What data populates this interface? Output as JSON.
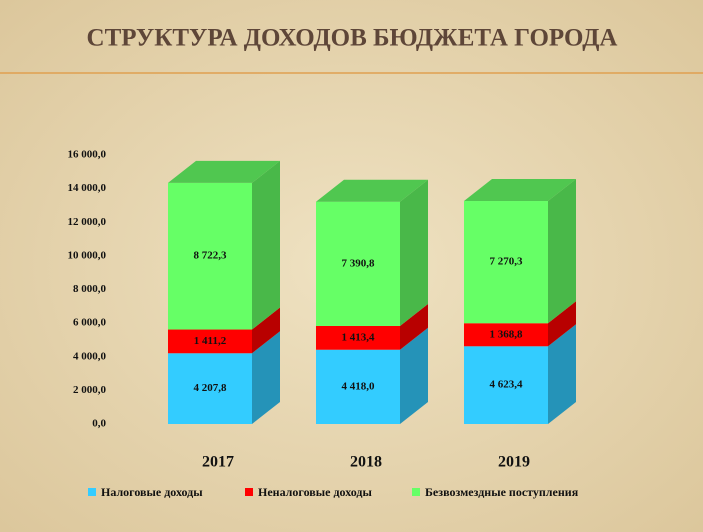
{
  "chart_data": {
    "type": "bar3d_stacked",
    "title": "СТРУКТУРА ДОХОДОВ БЮДЖЕТА ГОРОДА",
    "categories": [
      "2017",
      "2018",
      "2019"
    ],
    "series": [
      {
        "name": "Налоговые доходы",
        "color": "#33ccff",
        "values": [
          4207.8,
          4418.0,
          4623.4
        ],
        "value_labels": [
          "4 207,8",
          "4 418,0",
          "4 623,4"
        ]
      },
      {
        "name": "Неналоговые доходы",
        "color": "#ff0000",
        "values": [
          1411.2,
          1413.4,
          1368.8
        ],
        "value_labels": [
          "1 411,2",
          "1 413,4",
          "1 368,8"
        ]
      },
      {
        "name": "Безвозмездные поступления",
        "color": "#66ff66",
        "values": [
          8722.3,
          7390.8,
          7270.3
        ],
        "value_labels": [
          "8 722,3",
          "7 390,8",
          "7 270,3"
        ]
      }
    ],
    "ylim": [
      0,
      16000
    ],
    "yticks": [
      {
        "value": 0,
        "label": "0,0"
      },
      {
        "value": 2000,
        "label": "2 000,0"
      },
      {
        "value": 4000,
        "label": "4 000,0"
      },
      {
        "value": 6000,
        "label": "6 000,0"
      },
      {
        "value": 8000,
        "label": "8 000,0"
      },
      {
        "value": 10000,
        "label": "10 000,0"
      },
      {
        "value": 12000,
        "label": "12 000,0"
      },
      {
        "value": 14000,
        "label": "14 000,0"
      },
      {
        "value": 16000,
        "label": "16 000,0"
      }
    ],
    "legend": "bottom"
  }
}
